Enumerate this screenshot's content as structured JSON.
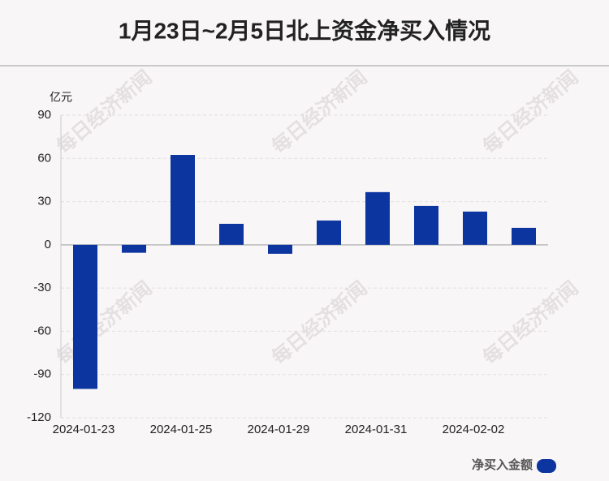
{
  "chart_data": {
    "type": "bar",
    "title": "1月23日~2月5日北上资金净买入情况",
    "y_unit": "亿元",
    "watermark": "每日经济新闻",
    "categories": [
      "2024-01-23",
      null,
      "2024-01-25",
      null,
      "2024-01-29",
      null,
      "2024-01-31",
      null,
      "2024-02-02",
      null
    ],
    "series": [
      {
        "name": "净买入金额",
        "color": "#0c35a0",
        "values": [
          -100,
          -5.5,
          62.4,
          14.6,
          -6.2,
          16.9,
          36.6,
          27,
          23.1,
          11.8
        ]
      }
    ],
    "ylim": [
      -120,
      90
    ],
    "yticks": [
      -120,
      -90,
      -60,
      -30,
      0,
      30,
      60,
      90
    ],
    "grid": true,
    "legend": "bottom-right"
  }
}
